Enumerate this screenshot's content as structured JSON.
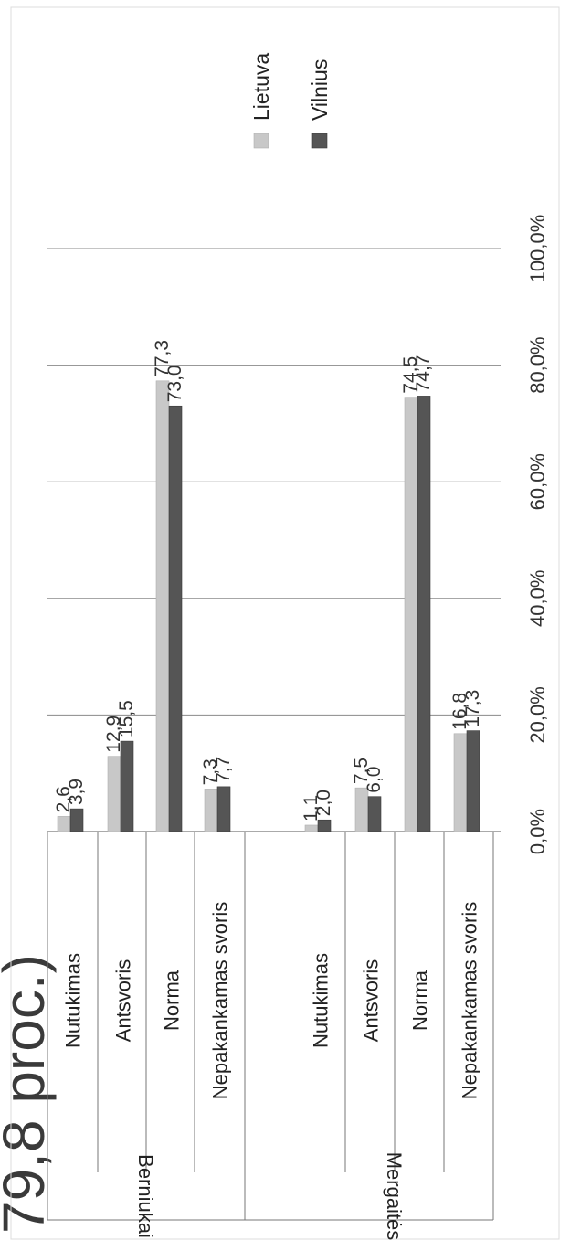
{
  "bg_text": "79,8 proc.)",
  "chart_data": {
    "type": "bar",
    "orientation": "horizontal",
    "groups": [
      {
        "label": "Berniukai",
        "categories": [
          "Nutukimas",
          "Antsvoris",
          "Norma",
          "Nepakankamas svoris"
        ]
      },
      {
        "label": "Mergaitės",
        "categories": [
          "Nutukimas",
          "Antsvoris",
          "Norma",
          "Nepakankamas svoris"
        ]
      }
    ],
    "series": [
      {
        "name": "Lietuva",
        "color": "#c8c8c8",
        "values": [
          2.6,
          12.9,
          77.3,
          7.3,
          1.1,
          7.5,
          74.5,
          16.8
        ],
        "labels": [
          "2,6",
          "12,9",
          "77,3",
          "7,3",
          "1,1",
          "7,5",
          "74,5",
          "16,8"
        ]
      },
      {
        "name": "Vilnius",
        "color": "#555555",
        "values": [
          3.9,
          15.5,
          73.0,
          7.7,
          2.0,
          6.0,
          74.7,
          17.3
        ],
        "labels": [
          "3,9",
          "15,5",
          "73,0",
          "7,7",
          "2,0",
          "6,0",
          "74,7",
          "17,3"
        ]
      }
    ],
    "axis": {
      "min": 0,
      "max": 100,
      "ticks": [
        0,
        20,
        40,
        60,
        80,
        100
      ],
      "tick_labels": [
        "0,0%",
        "20,0%",
        "40,0%",
        "60,0%",
        "80,0%",
        "100,0%"
      ]
    },
    "grid": true,
    "legend_position": "right"
  }
}
